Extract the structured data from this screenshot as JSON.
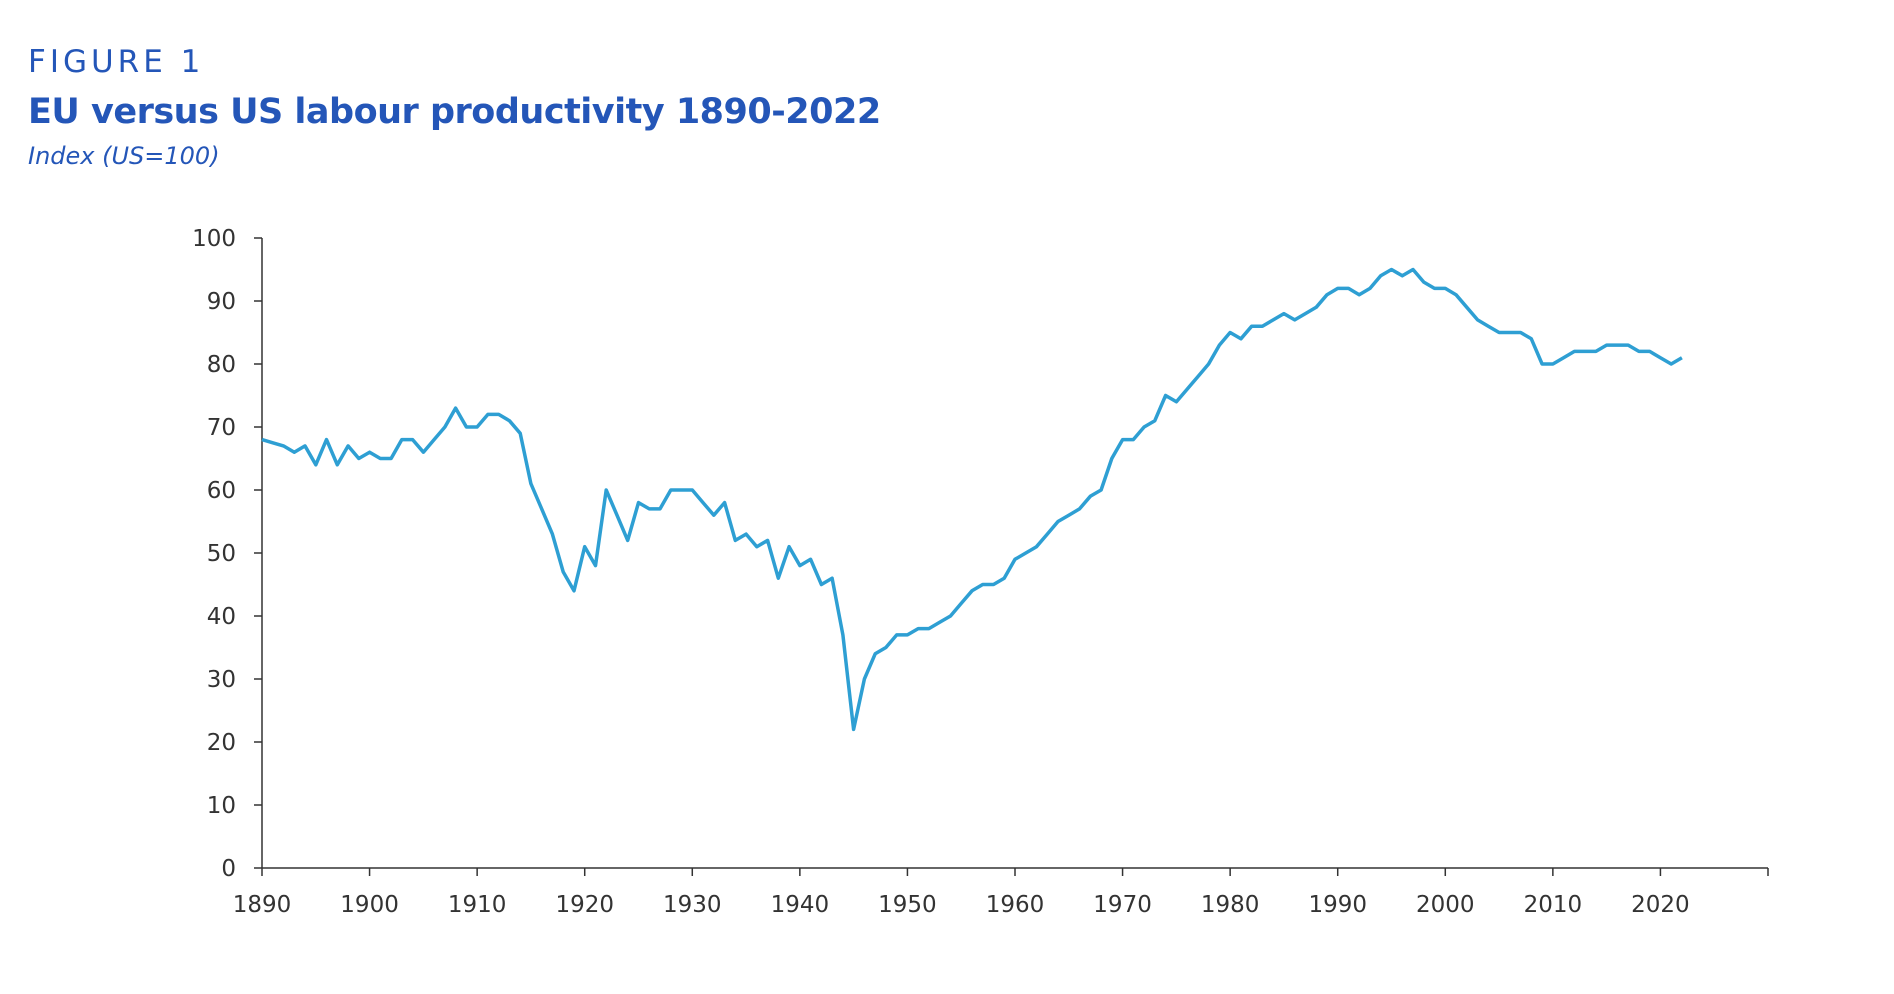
{
  "figure_label": "FIGURE 1",
  "title": "EU versus US labour productivity 1890-2022",
  "subtitle": "Index (US=100)",
  "colors": {
    "title": "#2456b8",
    "line": "#2e9fd3",
    "axis": "#333333"
  },
  "chart_data": {
    "type": "line",
    "title": "EU versus US labour productivity 1890-2022",
    "ylabel": "Index (US=100)",
    "xlabel": "",
    "xlim": [
      1890,
      2030
    ],
    "ylim": [
      0,
      100
    ],
    "grid": false,
    "xticks": [
      "1890",
      "1900",
      "1910",
      "1920",
      "1930",
      "1940",
      "1950",
      "1960",
      "1970",
      "1980",
      "1990",
      "2000",
      "2010",
      "2020"
    ],
    "yticks": [
      "0",
      "10",
      "20",
      "30",
      "40",
      "50",
      "60",
      "70",
      "80",
      "90",
      "100"
    ],
    "x_start": 1890,
    "series": [
      {
        "values": [
          68,
          67.5,
          67,
          66,
          67,
          64,
          68,
          64,
          67,
          65,
          66,
          65,
          65,
          68,
          68,
          66,
          68,
          70,
          73,
          70,
          70,
          72,
          72,
          71,
          69,
          61,
          57,
          53,
          47,
          44,
          51,
          48,
          60,
          56,
          52,
          58,
          57,
          57,
          60,
          60,
          60,
          58,
          56,
          58,
          52,
          53,
          51,
          52,
          46,
          51,
          48,
          49,
          45,
          46,
          37,
          22,
          30,
          34,
          35,
          37,
          37,
          38,
          38,
          39,
          40,
          42,
          44,
          45,
          45,
          46,
          49,
          50,
          51,
          53,
          55,
          56,
          57,
          59,
          60,
          65,
          68,
          68,
          70,
          71,
          75,
          74,
          76,
          78,
          80,
          83,
          85,
          84,
          86,
          86,
          87,
          88,
          87,
          88,
          89,
          91,
          92,
          92,
          91,
          92,
          94,
          95,
          94,
          95,
          93,
          92,
          92,
          91,
          89,
          87,
          86,
          85,
          85,
          85,
          84,
          80,
          80,
          81,
          82,
          82,
          82,
          83,
          83,
          83,
          82,
          82,
          81,
          80,
          81
        ]
      }
    ]
  }
}
